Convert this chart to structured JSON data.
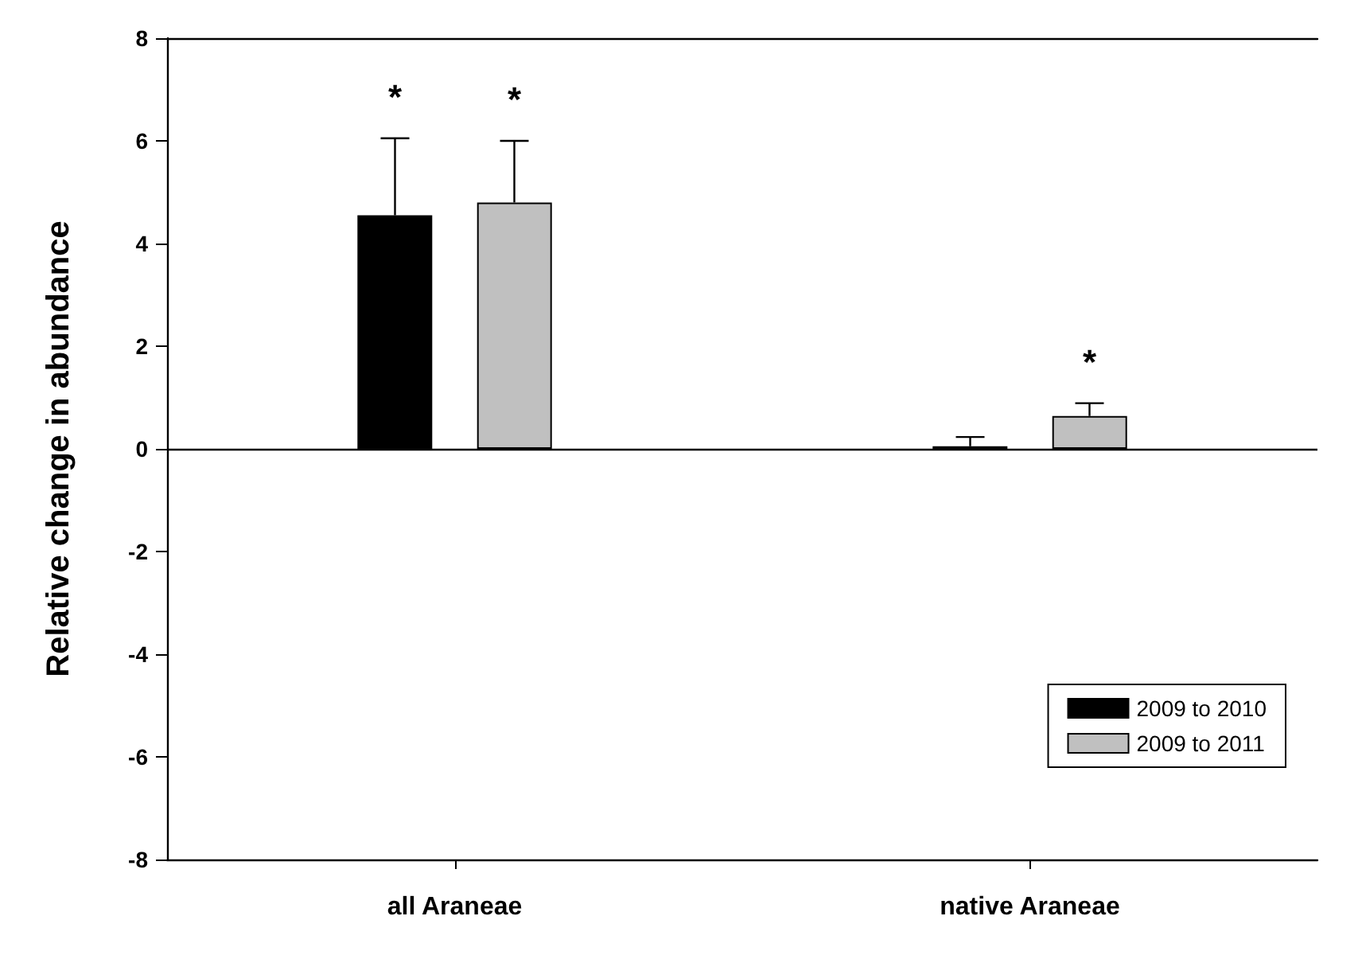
{
  "chart_data": {
    "type": "bar",
    "ylabel": "Relative change in abundance",
    "categories": [
      "all Araneae",
      "native Araneae"
    ],
    "series": [
      {
        "name": "2009 to 2010",
        "color": "#000000",
        "values": [
          4.55,
          0.05
        ],
        "value_labels": [
          "*",
          null
        ],
        "errors": [
          [
            4.55,
            6.05
          ],
          [
            0.05,
            0.23
          ]
        ]
      },
      {
        "name": "2009 to 2011",
        "color": "#c0c0c0",
        "values": [
          4.8,
          0.64
        ],
        "value_labels": [
          "*",
          "*"
        ],
        "errors": [
          [
            4.8,
            6.0
          ],
          [
            0.64,
            0.89
          ]
        ]
      }
    ],
    "ylim": [
      -8,
      8
    ],
    "yticks": [
      -8,
      -6,
      -4,
      -2,
      0,
      2,
      4,
      6,
      8
    ],
    "grid": false,
    "legend": "bottom right",
    "ref_lines": [
      {
        "axis": "y",
        "value": 0
      }
    ]
  }
}
